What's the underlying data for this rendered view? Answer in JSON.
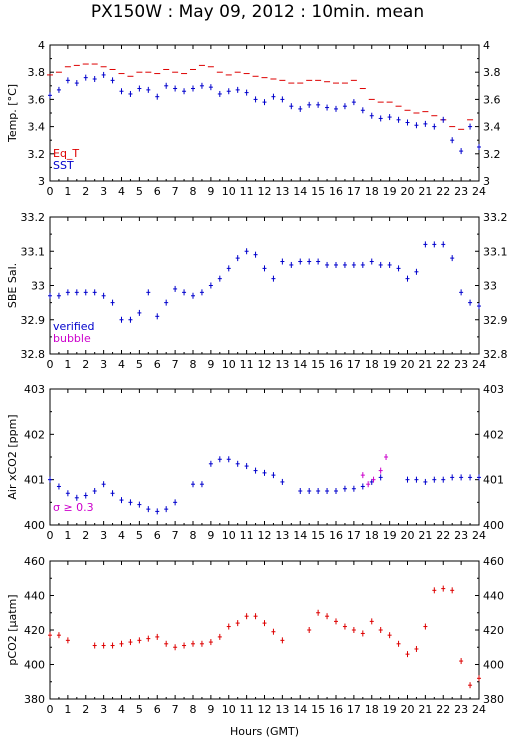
{
  "title": "PX150W : May 09, 2012 : 10min. mean",
  "xlabel": "Hours (GMT)",
  "colors": {
    "red": "#dd0000",
    "blue": "#0000cc",
    "magenta": "#cc00cc",
    "axis": "#000000"
  },
  "chart_data": [
    {
      "type": "scatter",
      "ylabel": "Temp. [°C]",
      "xlim": [
        0,
        24
      ],
      "ylim": [
        3,
        4
      ],
      "xticks": [
        "0",
        "1",
        "2",
        "3",
        "4",
        "5",
        "6",
        "7",
        "8",
        "9",
        "10",
        "11",
        "12",
        "13",
        "14",
        "15",
        "16",
        "17",
        "18",
        "19",
        "20",
        "21",
        "22",
        "23",
        "24"
      ],
      "yticks": [
        "3",
        "3.2",
        "3.4",
        "3.6",
        "3.8",
        "4"
      ],
      "legend": [
        "Eq_T",
        "SST"
      ],
      "series": [
        {
          "name": "Eq_T",
          "color": "#dd0000",
          "x": [
            0,
            0.5,
            1,
            1.5,
            2,
            2.5,
            3,
            3.5,
            4,
            4.5,
            5,
            5.5,
            6,
            6.5,
            7,
            7.5,
            8,
            8.5,
            9,
            9.5,
            10,
            10.5,
            11,
            11.5,
            12,
            12.5,
            13,
            13.5,
            14,
            14.5,
            15,
            15.5,
            16,
            16.5,
            17,
            17.5,
            18,
            18.5,
            19,
            19.5,
            20,
            20.5,
            21,
            21.5,
            22,
            22.5,
            23,
            23.5
          ],
          "y": [
            3.78,
            3.8,
            3.84,
            3.85,
            3.86,
            3.86,
            3.84,
            3.82,
            3.79,
            3.77,
            3.8,
            3.8,
            3.79,
            3.82,
            3.8,
            3.79,
            3.82,
            3.85,
            3.84,
            3.8,
            3.78,
            3.8,
            3.79,
            3.77,
            3.76,
            3.75,
            3.74,
            3.72,
            3.72,
            3.74,
            3.74,
            3.73,
            3.72,
            3.72,
            3.74,
            3.68,
            3.6,
            3.58,
            3.58,
            3.55,
            3.52,
            3.5,
            3.51,
            3.48,
            3.45,
            3.4,
            3.38,
            3.45
          ]
        },
        {
          "name": "SST",
          "color": "#0000cc",
          "x": [
            0,
            0.5,
            1,
            1.5,
            2,
            2.5,
            3,
            3.5,
            4,
            4.5,
            5,
            5.5,
            6,
            6.5,
            7,
            7.5,
            8,
            8.5,
            9,
            9.5,
            10,
            10.5,
            11,
            11.5,
            12,
            12.5,
            13,
            13.5,
            14,
            14.5,
            15,
            15.5,
            16,
            16.5,
            17,
            17.5,
            18,
            18.5,
            19,
            19.5,
            20,
            20.5,
            21,
            21.5,
            22,
            22.5,
            23,
            23.5,
            24
          ],
          "y": [
            3.63,
            3.67,
            3.74,
            3.72,
            3.76,
            3.75,
            3.78,
            3.74,
            3.66,
            3.64,
            3.68,
            3.67,
            3.62,
            3.7,
            3.68,
            3.66,
            3.68,
            3.7,
            3.69,
            3.64,
            3.66,
            3.67,
            3.65,
            3.6,
            3.58,
            3.62,
            3.6,
            3.55,
            3.53,
            3.56,
            3.56,
            3.54,
            3.53,
            3.55,
            3.58,
            3.52,
            3.48,
            3.46,
            3.47,
            3.45,
            3.43,
            3.41,
            3.42,
            3.4,
            3.45,
            3.3,
            3.22,
            3.4,
            3.25
          ]
        }
      ]
    },
    {
      "type": "scatter",
      "ylabel": "SBE Sal.",
      "xlim": [
        0,
        24
      ],
      "ylim": [
        32.8,
        33.2
      ],
      "xticks": [
        "0",
        "1",
        "2",
        "3",
        "4",
        "5",
        "6",
        "7",
        "8",
        "9",
        "10",
        "11",
        "12",
        "13",
        "14",
        "15",
        "16",
        "17",
        "18",
        "19",
        "20",
        "21",
        "22",
        "23",
        "24"
      ],
      "yticks": [
        "32.8",
        "32.9",
        "33",
        "33.1",
        "33.2"
      ],
      "legend": [
        "verified",
        "bubble"
      ],
      "series": [
        {
          "name": "verified",
          "color": "#0000cc",
          "x": [
            0,
            0.5,
            1,
            1.5,
            2,
            2.5,
            3,
            3.5,
            4,
            4.5,
            5,
            5.5,
            6,
            6.5,
            7,
            7.5,
            8,
            8.5,
            9,
            9.5,
            10,
            10.5,
            11,
            11.5,
            12,
            12.5,
            13,
            13.5,
            14,
            14.5,
            15,
            15.5,
            16,
            16.5,
            17,
            17.5,
            18,
            18.5,
            19,
            19.5,
            20,
            20.5,
            21,
            21.5,
            22,
            22.5,
            23,
            23.5,
            24
          ],
          "y": [
            32.97,
            32.97,
            32.98,
            32.98,
            32.98,
            32.98,
            32.97,
            32.95,
            32.9,
            32.9,
            32.92,
            32.98,
            32.91,
            32.95,
            32.99,
            32.98,
            32.97,
            32.98,
            33.0,
            33.02,
            33.05,
            33.08,
            33.1,
            33.09,
            33.05,
            33.02,
            33.07,
            33.06,
            33.07,
            33.07,
            33.07,
            33.06,
            33.06,
            33.06,
            33.06,
            33.06,
            33.07,
            33.06,
            33.06,
            33.05,
            33.02,
            33.04,
            33.12,
            33.12,
            33.12,
            33.08,
            32.98,
            32.95,
            32.94
          ]
        }
      ]
    },
    {
      "type": "scatter",
      "ylabel": "Air xCO2 [ppm]",
      "xlim": [
        0,
        24
      ],
      "ylim": [
        400,
        403
      ],
      "xticks": [
        "0",
        "1",
        "2",
        "3",
        "4",
        "5",
        "6",
        "7",
        "8",
        "9",
        "10",
        "11",
        "12",
        "13",
        "14",
        "15",
        "16",
        "17",
        "18",
        "19",
        "20",
        "21",
        "22",
        "23",
        "24"
      ],
      "yticks": [
        "400",
        "401",
        "402",
        "403"
      ],
      "annotation": "σ ≥ 0.3",
      "series": [
        {
          "name": "",
          "color": "#0000cc",
          "x": [
            0,
            0.5,
            1,
            1.5,
            2,
            2.5,
            3,
            3.5,
            4,
            4.5,
            5,
            5.5,
            6,
            6.5,
            7,
            7.5,
            8,
            8.5,
            9,
            9.5,
            10,
            10.5,
            11,
            11.5,
            12,
            12.5,
            13,
            14,
            14.5,
            15,
            15.5,
            16,
            16.5,
            17,
            17.5,
            18,
            18.5,
            20,
            20.5,
            21,
            21.5,
            22,
            22.5,
            23,
            23.5,
            24
          ],
          "y": [
            401.0,
            400.85,
            400.7,
            400.6,
            400.65,
            400.75,
            400.9,
            400.7,
            400.55,
            400.5,
            400.45,
            400.35,
            400.3,
            400.35,
            400.5,
            null,
            400.9,
            400.9,
            401.35,
            401.45,
            401.45,
            401.35,
            401.3,
            401.2,
            401.15,
            401.1,
            400.95,
            400.75,
            400.75,
            400.75,
            400.75,
            400.75,
            400.8,
            400.8,
            400.85,
            400.95,
            401.05,
            401.0,
            401.0,
            400.95,
            401.0,
            401.0,
            401.05,
            401.05,
            401.05,
            401.05
          ]
        },
        {
          "name": "",
          "color": "#cc00cc",
          "x": [
            17.5,
            17.8,
            18.1,
            18.5,
            18.8
          ],
          "y": [
            401.1,
            400.9,
            401.0,
            401.2,
            401.5
          ]
        }
      ]
    },
    {
      "type": "scatter",
      "ylabel": "pCO2 [μatm]",
      "xlim": [
        0,
        24
      ],
      "ylim": [
        380,
        460
      ],
      "xticks": [
        "0",
        "1",
        "2",
        "3",
        "4",
        "5",
        "6",
        "7",
        "8",
        "9",
        "10",
        "11",
        "12",
        "13",
        "14",
        "15",
        "16",
        "17",
        "18",
        "19",
        "20",
        "21",
        "22",
        "23",
        "24"
      ],
      "yticks": [
        "380",
        "400",
        "420",
        "440",
        "460"
      ],
      "series": [
        {
          "name": "",
          "color": "#dd0000",
          "x": [
            0,
            0.5,
            1,
            2.5,
            3,
            3.5,
            4,
            4.5,
            5,
            5.5,
            6,
            6.5,
            7,
            7.5,
            8,
            8.5,
            9,
            9.5,
            10,
            10.5,
            11,
            11.5,
            12,
            12.5,
            13,
            14,
            14.5,
            15,
            15.5,
            16,
            16.5,
            17,
            17.5,
            18,
            18.5,
            19,
            19.5,
            20,
            20.5,
            21,
            21.5,
            22,
            22.5,
            23,
            23.5,
            24
          ],
          "y": [
            417,
            417,
            414,
            411,
            411,
            411,
            412,
            413,
            414,
            415,
            416,
            412,
            410,
            411,
            412,
            412,
            413,
            416,
            422,
            424,
            428,
            428,
            424,
            419,
            414,
            null,
            420,
            430,
            428,
            425,
            422,
            420,
            418,
            425,
            420,
            417,
            412,
            406,
            409,
            422,
            443,
            444,
            443,
            402,
            388,
            392
          ]
        }
      ]
    }
  ]
}
